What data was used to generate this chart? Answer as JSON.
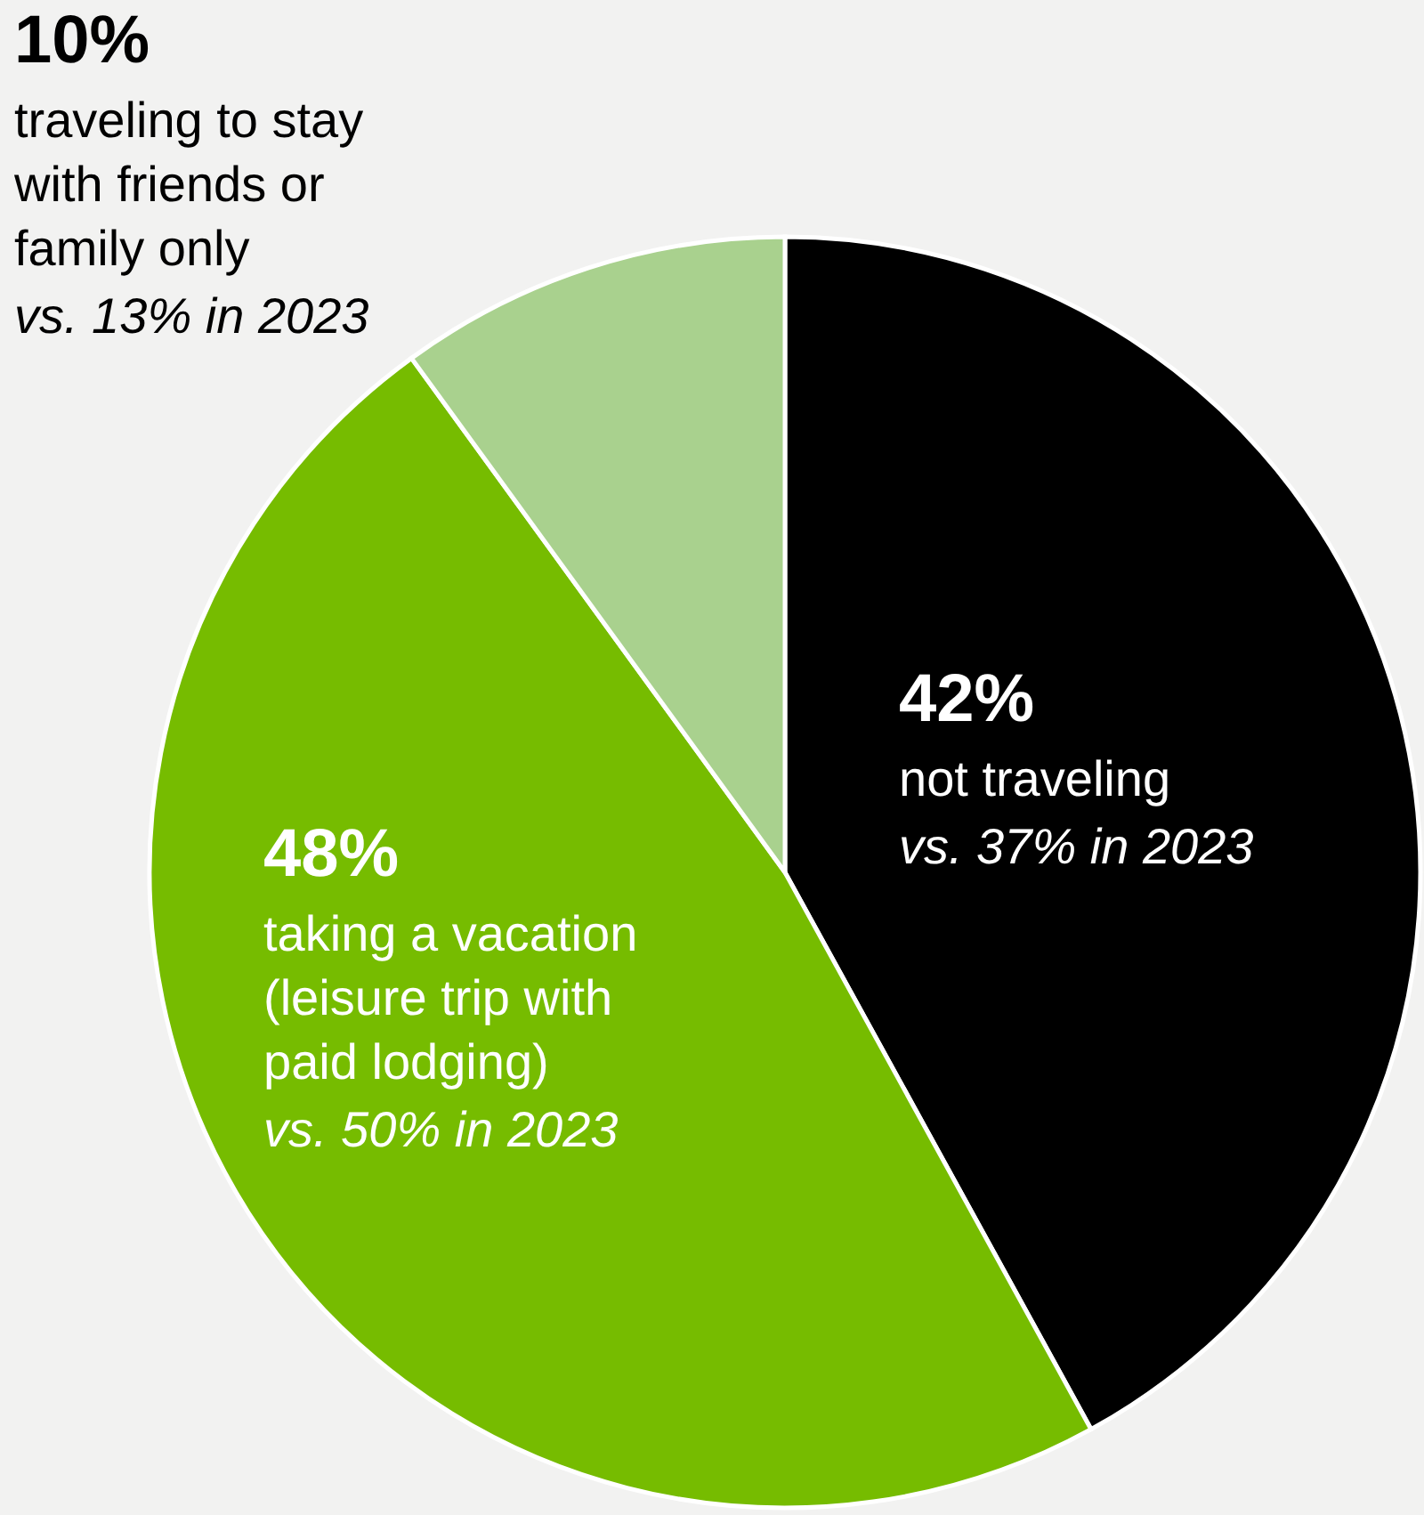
{
  "chart_data": {
    "type": "pie",
    "categories": [
      "not traveling",
      "taking a vacation (leisure trip with paid lodging)",
      "traveling to stay with friends or family only"
    ],
    "values": [
      42,
      48,
      10
    ],
    "colors": [
      "#000000",
      "#76bc00",
      "#a9d18e"
    ],
    "value_labels": [
      "42%",
      "48%",
      "10%"
    ],
    "annotations": [
      "vs. 37% in 2023",
      "vs. 50% in 2023",
      "vs. 13% in 2023"
    ]
  }
}
